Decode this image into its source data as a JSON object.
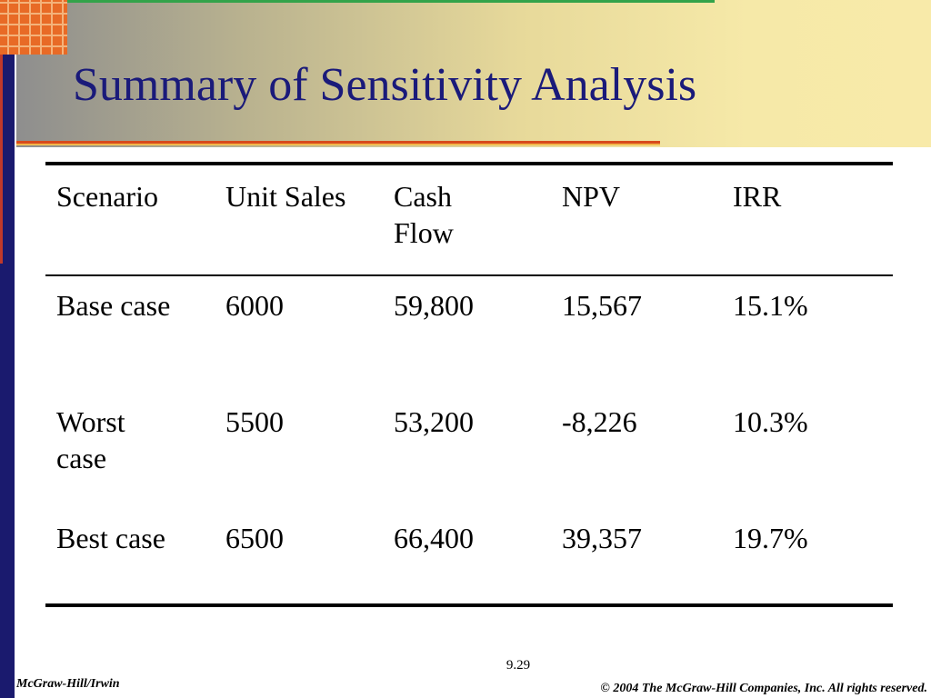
{
  "slide": {
    "title": "Summary of Sensitivity Analysis",
    "page_number": "9.29",
    "publisher": "McGraw-Hill/Irwin",
    "copyright": "© 2004 The McGraw-Hill Companies, Inc. All rights reserved."
  },
  "table": {
    "headers": [
      "Scenario",
      "Unit Sales",
      "Cash Flow",
      "NPV",
      "IRR"
    ],
    "rows": [
      [
        "Base case",
        "6000",
        "59,800",
        "15,567",
        "15.1%"
      ],
      [
        "Worst case",
        "5500",
        "53,200",
        "-8,226",
        "10.3%"
      ],
      [
        "Best case",
        "6500",
        "66,400",
        "39,357",
        "19.7%"
      ]
    ]
  },
  "colors": {
    "title": "#1a1a7a",
    "left_bar": "#1a1a6e",
    "rule_red": "#d84a1b",
    "logo_orange": "#e86a26"
  }
}
